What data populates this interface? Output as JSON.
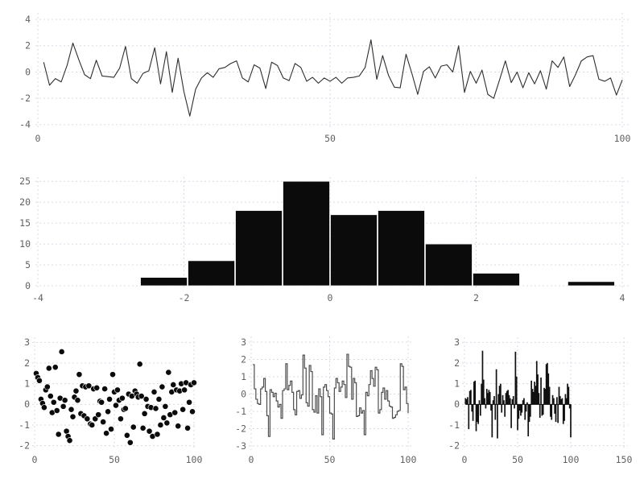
{
  "figure": {
    "background": "#ffffff",
    "grid_color": "#d9d9e6",
    "tick_label_color": "#616161",
    "data_color": "#111111"
  },
  "chart_data": [
    {
      "id": "line",
      "type": "line",
      "title": "",
      "xlabel": "",
      "ylabel": "",
      "xlim": [
        0,
        100
      ],
      "ylim": [
        -4.5,
        4.5
      ],
      "x_ticks": [
        0,
        50,
        100
      ],
      "y_ticks": [
        -4,
        -2,
        0,
        2,
        4
      ],
      "grid": true,
      "legend": false,
      "line_color": "#2e2e2e",
      "x_start": 1,
      "values": [
        0.75,
        -1.0,
        -0.5,
        -0.75,
        0.5,
        2.2,
        0.95,
        -0.2,
        -0.5,
        0.9,
        -0.3,
        -0.35,
        -0.4,
        0.3,
        1.95,
        -0.5,
        -0.85,
        -0.1,
        0.1,
        1.85,
        -0.9,
        1.55,
        -1.55,
        1.05,
        -1.5,
        -3.35,
        -1.3,
        -0.45,
        -0.05,
        -0.4,
        0.25,
        0.35,
        0.65,
        0.85,
        -0.45,
        -0.75,
        0.55,
        0.3,
        -1.25,
        0.75,
        0.5,
        -0.45,
        -0.65,
        0.65,
        0.35,
        -0.7,
        -0.4,
        -0.85,
        -0.45,
        -0.7,
        -0.4,
        -0.85,
        -0.45,
        -0.4,
        -0.3,
        0.35,
        2.45,
        -0.55,
        1.25,
        -0.25,
        -1.15,
        -1.2,
        1.35,
        -0.1,
        -1.7,
        0.05,
        0.4,
        -0.45,
        0.45,
        0.55,
        0.0,
        2.0,
        -1.55,
        0.05,
        -0.85,
        0.15,
        -1.7,
        -2.0,
        -0.6,
        0.85,
        -0.8,
        0.0,
        -1.2,
        -0.05,
        -0.9,
        0.1,
        -1.3,
        0.85,
        0.35,
        1.15,
        -1.1,
        -0.2,
        0.85,
        1.15,
        1.25,
        -0.55,
        -0.7,
        -0.45,
        -1.75,
        -0.6
      ]
    },
    {
      "id": "hist",
      "type": "bar",
      "title": "",
      "xlabel": "",
      "ylabel": "",
      "xlim": [
        -4,
        4
      ],
      "ylim": [
        0,
        26
      ],
      "x_ticks": [
        -4,
        -2,
        0,
        2,
        4
      ],
      "y_ticks": [
        0,
        5,
        10,
        15,
        20,
        25
      ],
      "grid": true,
      "legend": false,
      "bar_color": "#0b0b0b",
      "bin_start": -2.6,
      "bin_width": 0.65,
      "counts": [
        2,
        6,
        18,
        25,
        17,
        18,
        10,
        3,
        0,
        1
      ]
    },
    {
      "id": "scatter",
      "type": "scatter",
      "title": "",
      "xlabel": "",
      "ylabel": "",
      "xlim": [
        0,
        100
      ],
      "ylim": [
        -2.25,
        3.25
      ],
      "x_ticks": [
        0,
        50,
        100
      ],
      "y_ticks": [
        -2,
        -1,
        0,
        1,
        2,
        3
      ],
      "grid": true,
      "legend": false,
      "marker_color": "#0b0b0b",
      "marker_radius": 3.6,
      "x_start": 1,
      "values": [
        1.5,
        1.3,
        1.15,
        0.25,
        0.05,
        -0.15,
        0.7,
        0.85,
        1.75,
        0.4,
        -0.4,
        0.1,
        1.8,
        -0.3,
        -1.45,
        0.3,
        2.55,
        -0.1,
        0.2,
        -1.3,
        -1.55,
        -1.75,
        -0.25,
        -0.6,
        0.35,
        0.65,
        0.2,
        1.45,
        -0.45,
        0.9,
        -0.55,
        0.85,
        -0.7,
        0.9,
        -0.95,
        -1.0,
        0.75,
        -0.7,
        0.8,
        -0.5,
        0.15,
        0.1,
        -0.85,
        0.75,
        -1.4,
        -0.35,
        0.25,
        -1.2,
        1.45,
        0.6,
        -0.05,
        0.7,
        0.2,
        -0.7,
        0.3,
        -0.25,
        -0.2,
        -1.5,
        0.5,
        -1.85,
        0.4,
        -1.1,
        0.65,
        0.5,
        0.35,
        1.95,
        0.4,
        -1.15,
        -0.45,
        0.25,
        -0.1,
        -1.3,
        -0.15,
        -1.55,
        0.6,
        -0.2,
        -1.45,
        0.25,
        -1.0,
        0.85,
        -0.65,
        -0.1,
        -0.9,
        1.55,
        -0.5,
        0.6,
        0.95,
        -0.4,
        0.7,
        -1.05,
        0.65,
        1.0,
        -0.25,
        0.7,
        1.05,
        -1.15,
        0.1,
        0.95,
        -0.35,
        1.05
      ]
    },
    {
      "id": "step",
      "type": "line",
      "style": "step-post",
      "title": "",
      "xlabel": "",
      "ylabel": "",
      "xlim": [
        0,
        100
      ],
      "ylim": [
        -3.325,
        3.325
      ],
      "x_ticks": [
        0,
        50,
        100
      ],
      "y_ticks": [
        -3,
        -2,
        -1,
        0,
        1,
        2,
        3
      ],
      "grid": true,
      "legend": false,
      "line_color": "#4d4d4d",
      "x_start": 1,
      "values": [
        1.7,
        0.3,
        -0.3,
        -0.55,
        -0.6,
        0.3,
        0.4,
        0.9,
        0.15,
        -1.25,
        -2.45,
        0.25,
        0.1,
        -0.15,
        0.05,
        -0.4,
        -0.75,
        -0.6,
        -1.4,
        0.2,
        0.3,
        1.75,
        0.25,
        0.5,
        0.75,
        0.1,
        -0.9,
        -1.2,
        0.15,
        0.2,
        -0.25,
        -0.05,
        2.25,
        1.5,
        -0.5,
        -0.7,
        1.65,
        1.3,
        -0.9,
        -1.05,
        -0.1,
        -1.1,
        0.3,
        -0.15,
        -2.35,
        0.4,
        0.55,
        0.2,
        -0.15,
        -1.1,
        -1.15,
        -2.6,
        0.35,
        0.9,
        0.65,
        0.15,
        0.4,
        0.75,
        0.55,
        -0.2,
        2.3,
        1.6,
        1.55,
        -0.3,
        0.9,
        0.65,
        -1.3,
        -1.25,
        -0.8,
        -1.1,
        -0.95,
        -2.35,
        0.1,
        -0.1,
        0.55,
        1.35,
        0.9,
        0.45,
        1.55,
        1.4,
        -1.1,
        -0.9,
        0.1,
        0.35,
        -0.3,
        0.2,
        -0.4,
        -0.7,
        -0.75,
        -1.4,
        -1.35,
        -1.2,
        -1.0,
        -0.95,
        1.75,
        1.6,
        0.25,
        0.4,
        -0.55,
        -1.1
      ]
    },
    {
      "id": "stem",
      "type": "bar",
      "style": "impulse",
      "title": "",
      "xlabel": "",
      "ylabel": "",
      "xlim": [
        0,
        150
      ],
      "ylim": [
        -2.25,
        3.25
      ],
      "x_ticks": [
        0,
        50,
        100,
        150
      ],
      "y_ticks": [
        -2,
        -1,
        0,
        1,
        2,
        3
      ],
      "grid": true,
      "legend": false,
      "bar_color": "#111111",
      "x_start": 1,
      "values": [
        0.3,
        0.25,
        0.35,
        -1.2,
        0.65,
        0.7,
        -0.35,
        -0.8,
        1.1,
        1.15,
        -1.3,
        -0.85,
        -0.95,
        0.2,
        -0.55,
        1.0,
        2.6,
        1.2,
        0.3,
        -0.2,
        0.75,
        0.55,
        0.7,
        0.6,
        -0.3,
        -1.6,
        0.2,
        0.4,
        -0.75,
        1.7,
        -1.65,
        0.5,
        0.9,
        1.0,
        -0.4,
        0.45,
        0.2,
        -0.6,
        0.55,
        0.65,
        0.7,
        0.45,
        0.3,
        -1.15,
        0.25,
        0.4,
        -0.2,
        2.55,
        1.35,
        -1.25,
        -0.7,
        -0.3,
        -0.55,
        -0.4,
        0.2,
        0.3,
        -0.75,
        -0.35,
        0.1,
        -1.55,
        -0.85,
        -0.6,
        1.15,
        0.75,
        0.6,
        1.1,
        0.9,
        2.1,
        1.45,
        0.55,
        -0.65,
        1.3,
        -0.55,
        -0.5,
        0.8,
        0.75,
        1.95,
        2.0,
        1.5,
        0.85,
        -0.6,
        -0.75,
        0.45,
        0.3,
        -0.45,
        -0.85,
        0.35,
        -0.9,
        0.85,
        0.4,
        0.25,
        0.3,
        -0.95,
        -0.8,
        0.5,
        0.3,
        1.0,
        0.85,
        -0.2,
        -1.6
      ]
    }
  ]
}
